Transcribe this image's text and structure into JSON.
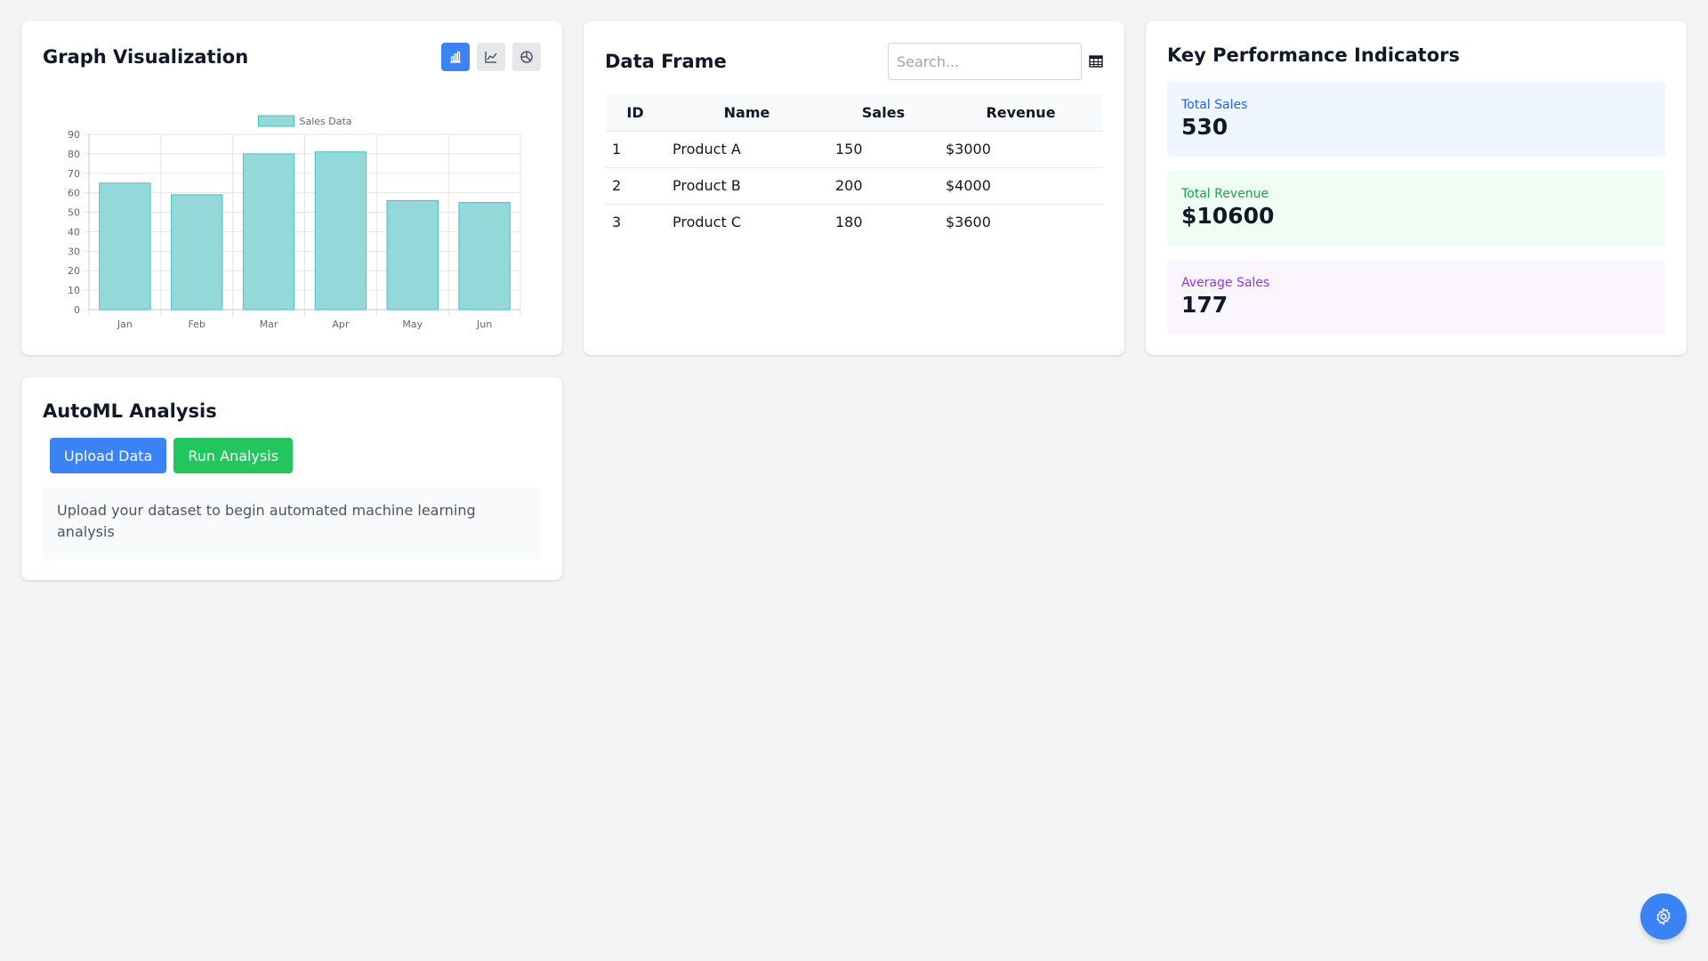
{
  "graph": {
    "title": "Graph Visualization",
    "chart_type_buttons": [
      {
        "icon": "bar-chart-icon",
        "active": true
      },
      {
        "icon": "line-chart-icon",
        "active": false
      },
      {
        "icon": "pie-chart-icon",
        "active": false
      }
    ]
  },
  "chart_data": {
    "type": "bar",
    "categories": [
      "Jan",
      "Feb",
      "Mar",
      "Apr",
      "May",
      "Jun"
    ],
    "series": [
      {
        "name": "Sales Data",
        "values": [
          65,
          59,
          80,
          81,
          56,
          55
        ]
      }
    ],
    "yticks": [
      0,
      10,
      20,
      30,
      40,
      50,
      60,
      70,
      80,
      90
    ],
    "ylim": [
      0,
      90
    ],
    "grid": true,
    "legend": "top",
    "colors": {
      "fill": "#93d9d9",
      "stroke": "#4bc0c0"
    }
  },
  "data_frame": {
    "title": "Data Frame",
    "search_placeholder": "Search...",
    "icon": "table-icon",
    "columns": [
      "ID",
      "Name",
      "Sales",
      "Revenue"
    ],
    "rows": [
      [
        "1",
        "Product A",
        "150",
        "$3000"
      ],
      [
        "2",
        "Product B",
        "200",
        "$4000"
      ],
      [
        "3",
        "Product C",
        "180",
        "$3600"
      ]
    ]
  },
  "kpi": {
    "title": "Key Performance Indicators",
    "items": [
      {
        "label": "Total Sales",
        "value": "530"
      },
      {
        "label": "Total Revenue",
        "value": "$10600"
      },
      {
        "label": "Average Sales",
        "value": "177"
      }
    ]
  },
  "automl": {
    "title": "AutoML Analysis",
    "upload_label": "Upload Data",
    "run_label": "Run Analysis",
    "message": "Upload your dataset to begin automated machine learning analysis"
  },
  "fab": {
    "icon": "gear-icon"
  },
  "colors": {
    "accent": "#3b82f6",
    "success": "#22c55e",
    "background": "#f3f4f6"
  }
}
